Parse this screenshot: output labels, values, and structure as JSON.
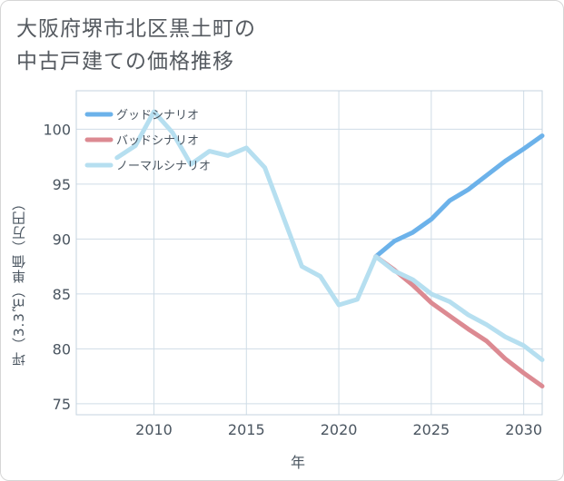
{
  "title_lines": [
    "大阪府堺市北区黒土町の",
    "中古戸建ての価格推移"
  ],
  "chart_data": {
    "type": "line",
    "title": "大阪府堺市北区黒土町の中古戸建ての価格推移",
    "xlabel": "年",
    "ylabel": "坪（3.3㎡）単価（万円）",
    "xlim": [
      2005.8,
      2031
    ],
    "ylim": [
      74,
      103.5
    ],
    "xticks": [
      2010,
      2015,
      2020,
      2025,
      2030
    ],
    "yticks": [
      75,
      80,
      85,
      90,
      95,
      100
    ],
    "grid": true,
    "legend_position": "top-left",
    "series": [
      {
        "name": "グッドシナリオ",
        "color": "#6cb2ea",
        "x": [
          2022,
          2023,
          2024,
          2025,
          2026,
          2027,
          2028,
          2029,
          2030,
          2031
        ],
        "y": [
          88.4,
          89.8,
          90.6,
          91.8,
          93.5,
          94.5,
          95.8,
          97.1,
          98.2,
          99.4
        ]
      },
      {
        "name": "バッドシナリオ",
        "color": "#dc8a92",
        "x": [
          2022,
          2023,
          2024,
          2025,
          2026,
          2027,
          2028,
          2029,
          2030,
          2031
        ],
        "y": [
          88.4,
          87.2,
          85.8,
          84.2,
          83.0,
          81.8,
          80.7,
          79.1,
          77.8,
          76.6
        ]
      },
      {
        "name": "ノーマルシナリオ",
        "color": "#b6dff0",
        "x": [
          2008,
          2009,
          2010,
          2011,
          2012,
          2013,
          2014,
          2015,
          2016,
          2017,
          2018,
          2019,
          2020,
          2021,
          2022,
          2023,
          2024,
          2025,
          2026,
          2027,
          2028,
          2029,
          2030,
          2031
        ],
        "y": [
          97.4,
          98.5,
          101.6,
          99.7,
          96.8,
          98.0,
          97.6,
          98.3,
          96.5,
          92.0,
          87.5,
          86.6,
          84.0,
          84.5,
          88.4,
          87.1,
          86.3,
          85.0,
          84.3,
          83.1,
          82.2,
          81.1,
          80.3,
          79.0
        ]
      }
    ]
  }
}
